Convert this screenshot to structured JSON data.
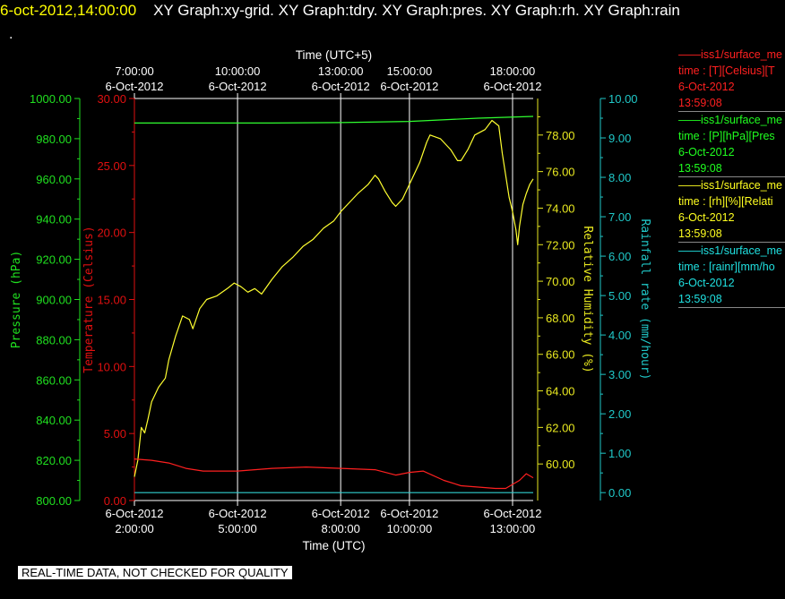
{
  "header": {
    "date_time": "6-oct-2012,14:00:00",
    "plots": "XY Graph:xy-grid.  XY Graph:tdry.  XY Graph:pres.  XY Graph:rh.  XY Graph:rain"
  },
  "stray_mark": ".",
  "footer": {
    "note": "REAL-TIME DATA, NOT CHECKED FOR QUALITY"
  },
  "legend": [
    {
      "name": "——iss1/surface_me",
      "field": "time : [T][Celsius][T",
      "date": "6-Oct-2012",
      "time": "13:59:08",
      "color": "#ff2020"
    },
    {
      "name": "——iss1/surface_me",
      "field": "time : [P][hPa][Pres",
      "date": "6-Oct-2012",
      "time": "13:59:08",
      "color": "#20ff20"
    },
    {
      "name": "——iss1/surface_me",
      "field": "time : [rh][%][Relati",
      "date": "6-Oct-2012",
      "time": "13:59:08",
      "color": "#ffff20"
    },
    {
      "name": "——iss1/surface_me",
      "field": "time : [rainr][mm/ho",
      "date": "6-Oct-2012",
      "time": "13:59:08",
      "color": "#20e0e0"
    }
  ],
  "chart_data": {
    "type": "line",
    "grid": "vertical lines only",
    "x_bottom": {
      "label": "Time (UTC)",
      "ticks": [
        {
          "t": "2012-10-06 02:00",
          "date": "6-Oct-2012",
          "time": "2:00:00"
        },
        {
          "t": "2012-10-06 05:00",
          "date": "6-Oct-2012",
          "time": "5:00:00"
        },
        {
          "t": "2012-10-06 08:00",
          "date": "6-Oct-2012",
          "time": "8:00:00"
        },
        {
          "t": "2012-10-06 10:00",
          "date": "6-Oct-2012",
          "time": "10:00:00"
        },
        {
          "t": "2012-10-06 13:00",
          "date": "6-Oct-2012",
          "time": "13:00:00"
        }
      ]
    },
    "x_top": {
      "label": "Time (UTC+5)",
      "ticks": [
        {
          "t": "2012-10-06 07:00",
          "time": "7:00:00",
          "date": "6-Oct-2012"
        },
        {
          "t": "2012-10-06 10:00",
          "time": "10:00:00",
          "date": "6-Oct-2012"
        },
        {
          "t": "2012-10-06 13:00",
          "time": "13:00:00",
          "date": "6-Oct-2012"
        },
        {
          "t": "2012-10-06 15:00",
          "time": "15:00:00",
          "date": "6-Oct-2012"
        },
        {
          "t": "2012-10-06 18:00",
          "time": "18:00:00",
          "date": "6-Oct-2012"
        }
      ]
    },
    "axes": [
      {
        "id": "pres",
        "label": "Pressure (hPa)",
        "color": "#20e020",
        "range": [
          800,
          1000
        ],
        "ticks": [
          "800.00",
          "820.00",
          "840.00",
          "860.00",
          "880.00",
          "900.00",
          "920.00",
          "940.00",
          "960.00",
          "980.00",
          "1000.00"
        ]
      },
      {
        "id": "temp",
        "label": "Temperature (Celsius)",
        "color": "#e01010",
        "range": [
          0,
          30
        ],
        "ticks": [
          "0.00",
          "5.00",
          "10.00",
          "15.00",
          "20.00",
          "25.00",
          "30.00"
        ]
      },
      {
        "id": "rh",
        "label": "Relative Humidity (%)",
        "color": "#e8e820",
        "range": [
          58,
          80
        ],
        "ticks": [
          "60.00",
          "62.00",
          "64.00",
          "66.00",
          "68.00",
          "70.00",
          "72.00",
          "74.00",
          "76.00",
          "78.00"
        ]
      },
      {
        "id": "rain",
        "label": "Rainfall rate (mm/hour)",
        "color": "#20c8c8",
        "range": [
          -0.2,
          10
        ],
        "ticks": [
          "0.00",
          "1.00",
          "2.00",
          "3.00",
          "4.00",
          "5.00",
          "6.00",
          "7.00",
          "8.00",
          "9.00",
          "10.00"
        ]
      }
    ],
    "series": [
      {
        "axis": "rh",
        "color": "#ffff30",
        "points": [
          [
            "02:00",
            59.3
          ],
          [
            "02:06",
            60.2
          ],
          [
            "02:12",
            62.0
          ],
          [
            "02:18",
            61.7
          ],
          [
            "02:24",
            62.5
          ],
          [
            "02:30",
            63.4
          ],
          [
            "02:42",
            64.2
          ],
          [
            "02:54",
            64.7
          ],
          [
            "03:00",
            65.7
          ],
          [
            "03:12",
            67.0
          ],
          [
            "03:24",
            68.1
          ],
          [
            "03:36",
            67.9
          ],
          [
            "03:42",
            67.4
          ],
          [
            "03:54",
            68.5
          ],
          [
            "04:06",
            69.0
          ],
          [
            "04:24",
            69.2
          ],
          [
            "04:42",
            69.6
          ],
          [
            "04:54",
            69.9
          ],
          [
            "05:06",
            69.7
          ],
          [
            "05:18",
            69.4
          ],
          [
            "05:30",
            69.6
          ],
          [
            "05:42",
            69.3
          ],
          [
            "06:00",
            70.1
          ],
          [
            "06:18",
            70.8
          ],
          [
            "06:36",
            71.3
          ],
          [
            "06:54",
            71.9
          ],
          [
            "07:12",
            72.3
          ],
          [
            "07:30",
            72.9
          ],
          [
            "07:48",
            73.3
          ],
          [
            "08:00",
            73.8
          ],
          [
            "08:12",
            74.2
          ],
          [
            "08:30",
            74.8
          ],
          [
            "08:48",
            75.3
          ],
          [
            "09:00",
            75.8
          ],
          [
            "09:06",
            75.6
          ],
          [
            "09:18",
            74.9
          ],
          [
            "09:30",
            74.3
          ],
          [
            "09:36",
            74.1
          ],
          [
            "09:48",
            74.5
          ],
          [
            "10:00",
            75.3
          ],
          [
            "10:18",
            76.5
          ],
          [
            "10:30",
            77.6
          ],
          [
            "10:36",
            78.0
          ],
          [
            "10:54",
            77.8
          ],
          [
            "11:12",
            77.2
          ],
          [
            "11:24",
            76.6
          ],
          [
            "11:30",
            76.6
          ],
          [
            "11:42",
            77.2
          ],
          [
            "11:54",
            78.0
          ],
          [
            "12:12",
            78.3
          ],
          [
            "12:24",
            78.8
          ],
          [
            "12:36",
            78.5
          ],
          [
            "12:42",
            77.0
          ],
          [
            "12:48",
            75.8
          ],
          [
            "12:54",
            74.6
          ],
          [
            "13:00",
            73.8
          ],
          [
            "13:06",
            72.8
          ],
          [
            "13:09",
            72.0
          ],
          [
            "13:12",
            73.0
          ],
          [
            "13:18",
            74.2
          ],
          [
            "13:24",
            74.8
          ],
          [
            "13:30",
            75.3
          ],
          [
            "13:36",
            75.6
          ]
        ]
      },
      {
        "axis": "temp",
        "color": "#ff2020",
        "points": [
          [
            "02:00",
            3.1
          ],
          [
            "02:30",
            3.0
          ],
          [
            "03:00",
            2.8
          ],
          [
            "03:30",
            2.4
          ],
          [
            "04:00",
            2.2
          ],
          [
            "05:00",
            2.2
          ],
          [
            "06:00",
            2.4
          ],
          [
            "07:00",
            2.5
          ],
          [
            "08:00",
            2.4
          ],
          [
            "09:00",
            2.3
          ],
          [
            "09:36",
            1.9
          ],
          [
            "10:00",
            2.1
          ],
          [
            "10:24",
            2.2
          ],
          [
            "11:00",
            1.5
          ],
          [
            "11:30",
            1.1
          ],
          [
            "12:00",
            1.0
          ],
          [
            "12:30",
            0.9
          ],
          [
            "12:48",
            0.9
          ],
          [
            "13:00",
            1.2
          ],
          [
            "13:12",
            1.5
          ],
          [
            "13:24",
            2.0
          ],
          [
            "13:36",
            1.7
          ]
        ]
      },
      {
        "axis": "pres",
        "color": "#30ff30",
        "points": [
          [
            "02:00",
            987.8
          ],
          [
            "04:00",
            987.8
          ],
          [
            "06:00",
            987.8
          ],
          [
            "08:00",
            988.0
          ],
          [
            "10:00",
            988.6
          ],
          [
            "12:00",
            990.2
          ],
          [
            "13:36",
            991.1
          ]
        ]
      },
      {
        "axis": "rain",
        "color": "#30d0d0",
        "points": [
          [
            "02:00",
            0.0
          ],
          [
            "13:36",
            0.0
          ]
        ]
      }
    ]
  }
}
